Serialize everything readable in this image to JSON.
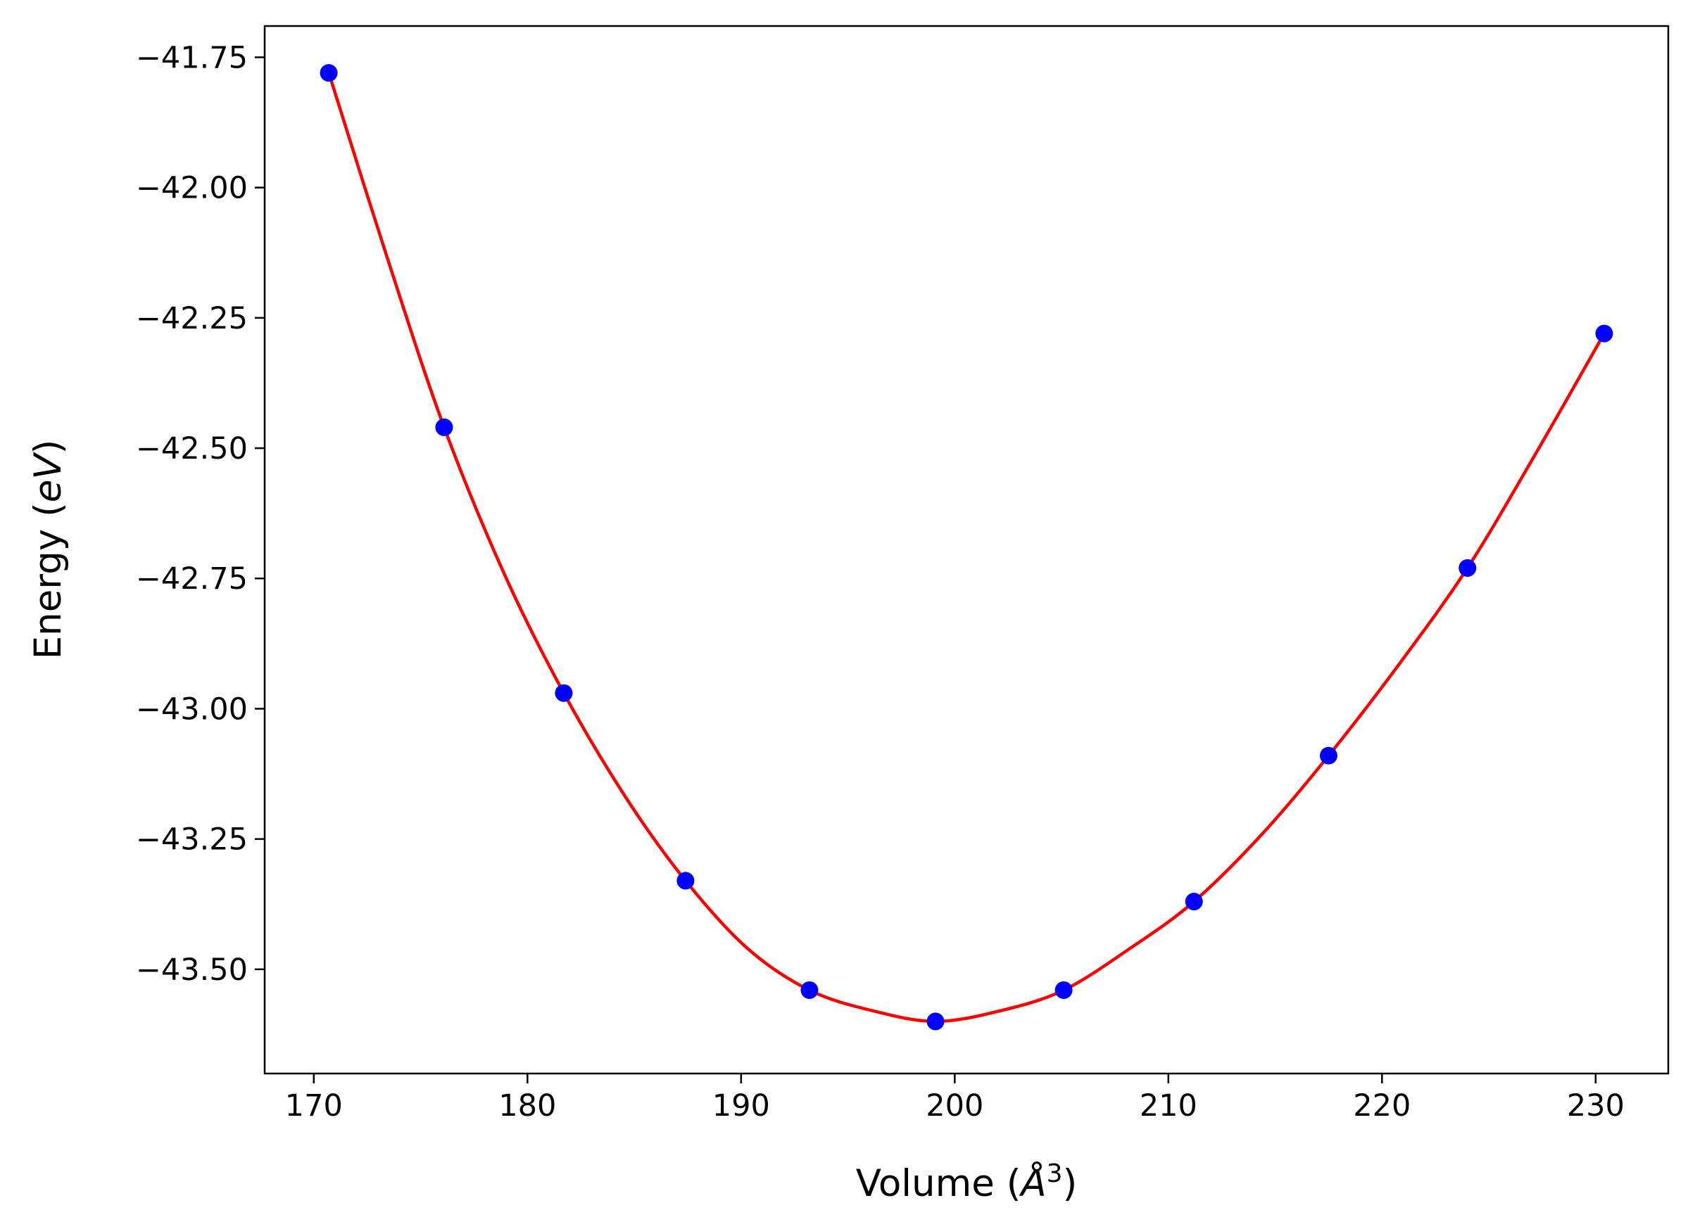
{
  "chart_data": {
    "type": "scatter",
    "title": "",
    "xlabel": {
      "prefix": "Volume (",
      "symbol": "Å",
      "sup": "3",
      "suffix": ")"
    },
    "ylabel": {
      "prefix": "Energy (",
      "symbol": "eV",
      "suffix": ")"
    },
    "xlim": [
      167.7,
      233.4
    ],
    "ylim": [
      -43.7,
      -41.69
    ],
    "xticks": [
      170,
      180,
      190,
      200,
      210,
      220,
      230
    ],
    "xtick_labels": [
      "170",
      "180",
      "190",
      "200",
      "210",
      "220",
      "230"
    ],
    "yticks": [
      -41.75,
      -42.0,
      -42.25,
      -42.5,
      -42.75,
      -43.0,
      -43.25,
      -43.5
    ],
    "ytick_labels": [
      "−41.75",
      "−42.00",
      "−42.25",
      "−42.50",
      "−42.75",
      "−43.00",
      "−43.25",
      "−43.50"
    ],
    "grid": false,
    "series": [
      {
        "kind": "points",
        "color": "#0000ff",
        "x": [
          170.7,
          176.1,
          181.7,
          187.4,
          193.2,
          199.1,
          205.1,
          211.2,
          217.5,
          224.0,
          230.4
        ],
        "y": [
          -41.78,
          -42.46,
          -42.97,
          -43.33,
          -43.54,
          -43.6,
          -43.54,
          -43.37,
          -43.09,
          -42.73,
          -42.28
        ]
      },
      {
        "kind": "fit-curve",
        "color": "#ff0000",
        "x": [
          170.7,
          173.4,
          176.1,
          178.9,
          181.7,
          184.6,
          187.4,
          190.3,
          193.2,
          196.2,
          199.1,
          202.1,
          205.1,
          208.2,
          211.2,
          214.4,
          217.5,
          220.7,
          224.0,
          227.2,
          230.4
        ],
        "y": [
          -41.78,
          -42.13,
          -42.46,
          -42.74,
          -42.97,
          -43.17,
          -43.33,
          -43.46,
          -43.54,
          -43.58,
          -43.6,
          -43.58,
          -43.54,
          -43.46,
          -43.37,
          -43.24,
          -43.09,
          -42.92,
          -42.73,
          -42.51,
          -42.28
        ]
      }
    ]
  }
}
